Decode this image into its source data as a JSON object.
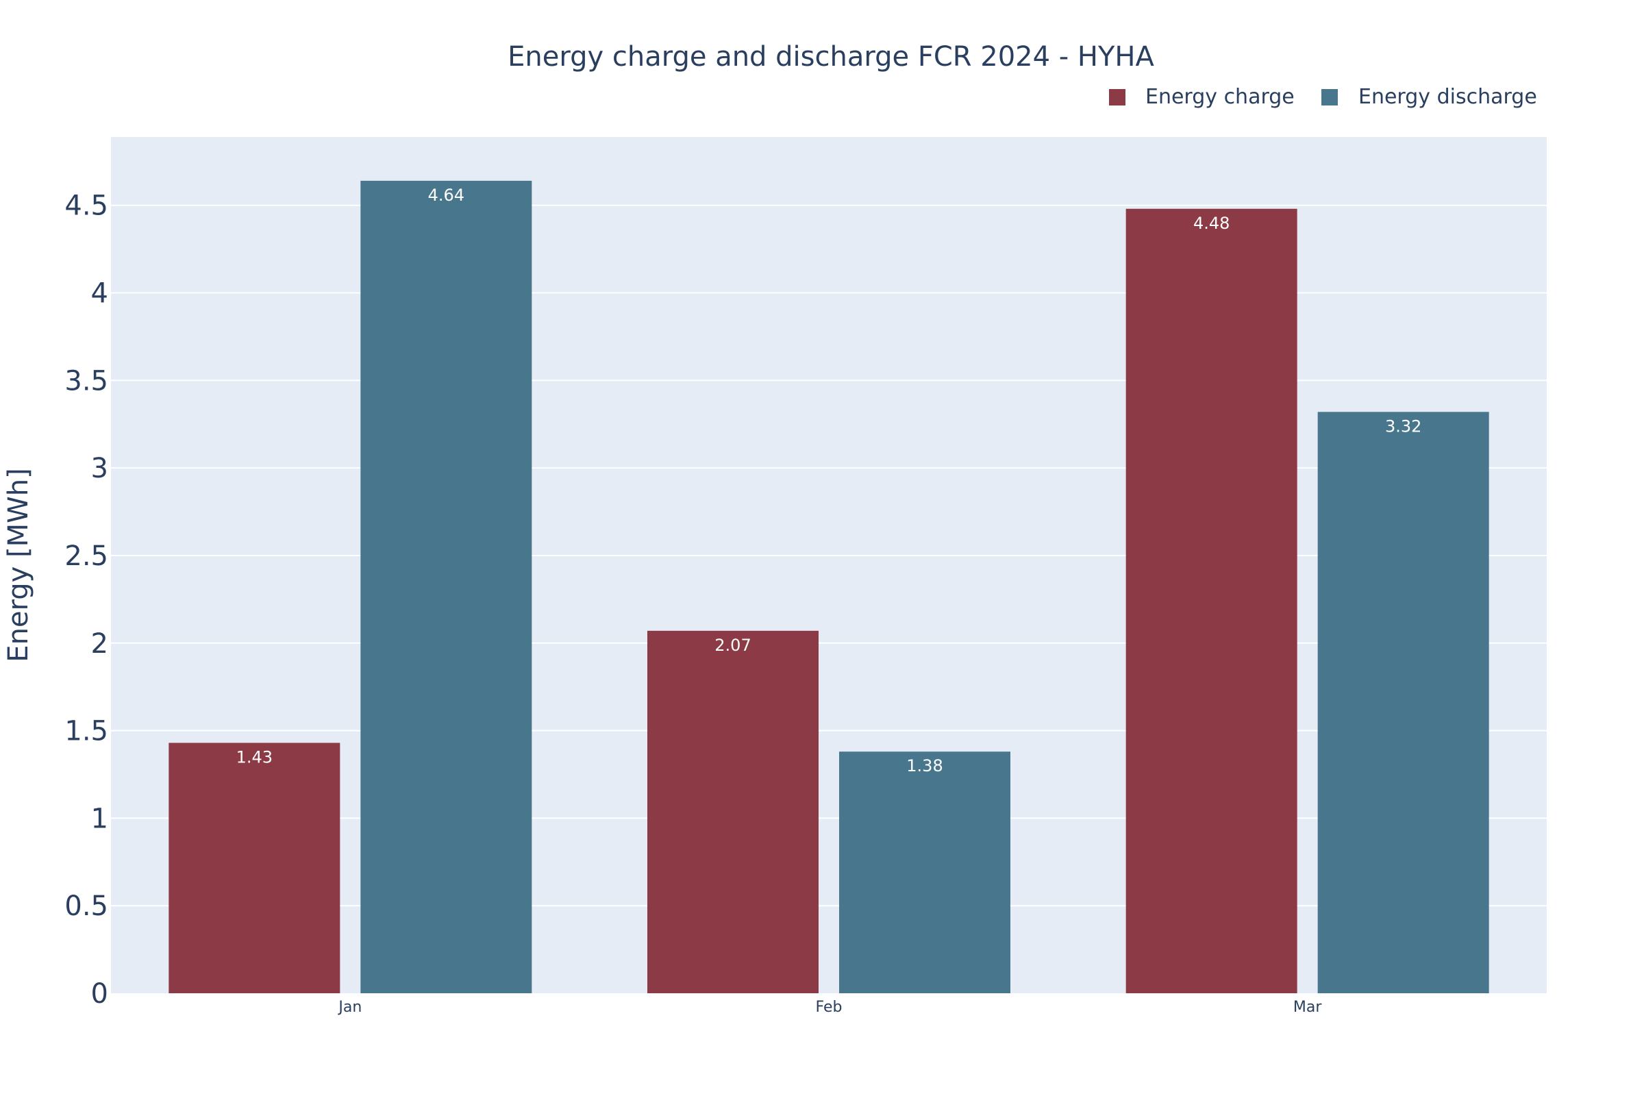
{
  "chart_data": {
    "type": "bar",
    "title": "Energy charge and discharge FCR 2024 - HYHA",
    "xlabel": "",
    "ylabel": "Energy [MWh]",
    "categories": [
      "Jan",
      "Feb",
      "Mar"
    ],
    "series": [
      {
        "name": "Energy charge",
        "color": "#8c3a45",
        "values": [
          1.43,
          2.07,
          4.48
        ]
      },
      {
        "name": "Energy discharge",
        "color": "#48778d",
        "values": [
          4.64,
          1.38,
          3.32
        ]
      }
    ],
    "ylim": [
      0,
      4.89
    ],
    "yticks": [
      "0",
      "0.5",
      "1",
      "1.5",
      "2",
      "2.5",
      "3",
      "3.5",
      "4",
      "4.5"
    ],
    "ytick_values": [
      0,
      0.5,
      1,
      1.5,
      2,
      2.5,
      3,
      3.5,
      4,
      4.5
    ],
    "data_labels": [
      [
        "1.43",
        "2.07",
        "4.48"
      ],
      [
        "4.64",
        "1.38",
        "3.32"
      ]
    ],
    "grid": true,
    "legend_position": "top-right",
    "plot_background": "#e5ecf6",
    "text_color": "#2a3f5f"
  }
}
